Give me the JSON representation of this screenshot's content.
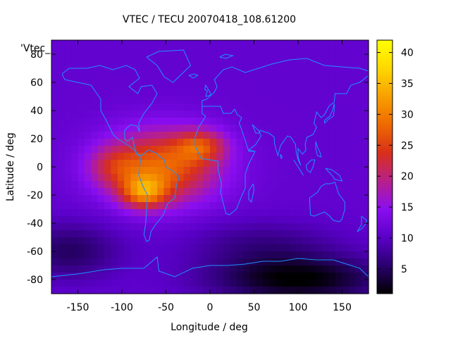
{
  "chart_data": {
    "type": "heatmap",
    "title": "VTEC / TECU 20070418_108.61200",
    "xlabel": "Longitude / deg",
    "ylabel": "Latitude / deg",
    "key_label": "'Vtec_",
    "xlim": [
      -180,
      180
    ],
    "ylim": [
      -90,
      90
    ],
    "xticks": [
      -150,
      -100,
      -50,
      0,
      50,
      100,
      150
    ],
    "yticks": [
      -80,
      -60,
      -40,
      -20,
      0,
      20,
      40,
      60,
      80
    ],
    "colorbar": {
      "range": [
        1,
        42
      ],
      "ticks": [
        5,
        10,
        15,
        20,
        25,
        30,
        35,
        40
      ],
      "palette": [
        "#000000",
        "#2a006e",
        "#5a00c8",
        "#8a0ef0",
        "#b8208a",
        "#d8301a",
        "#ee6a00",
        "#f8a000",
        "#ffd800",
        "#ffff00"
      ]
    },
    "field": {
      "background": 11,
      "features": [
        {
          "name": "equatorial-anomaly-main",
          "lon": -55,
          "lat": 0,
          "sigma_lon": 45,
          "sigma_lat": 18,
          "amplitude": 17
        },
        {
          "name": "crest-south",
          "lon": -75,
          "lat": -18,
          "sigma_lon": 18,
          "sigma_lat": 8,
          "amplitude": 14
        },
        {
          "name": "crest-north",
          "lon": -10,
          "lat": 15,
          "sigma_lon": 20,
          "sigma_lat": 8,
          "amplitude": 10
        },
        {
          "name": "crest-west",
          "lon": -110,
          "lat": 0,
          "sigma_lon": 20,
          "sigma_lat": 10,
          "amplitude": 6
        },
        {
          "name": "polar-south-low",
          "lon": 100,
          "lat": -80,
          "sigma_lon": 70,
          "sigma_lat": 12,
          "amplitude": -10
        },
        {
          "name": "south-pacific-low",
          "lon": -160,
          "lat": -60,
          "sigma_lon": 40,
          "sigma_lat": 14,
          "amplitude": -6
        },
        {
          "name": "southern-indian-low",
          "lon": 60,
          "lat": -55,
          "sigma_lon": 60,
          "sigma_lat": 12,
          "amplitude": -4
        }
      ]
    },
    "coastlines": [
      {
        "name": "north-america",
        "points": [
          [
            -168,
            66
          ],
          [
            -160,
            70
          ],
          [
            -140,
            70
          ],
          [
            -125,
            72
          ],
          [
            -110,
            69
          ],
          [
            -95,
            72
          ],
          [
            -85,
            69
          ],
          [
            -80,
            63
          ],
          [
            -92,
            57
          ],
          [
            -82,
            52
          ],
          [
            -78,
            57
          ],
          [
            -66,
            58
          ],
          [
            -60,
            52
          ],
          [
            -66,
            45
          ],
          [
            -70,
            42
          ],
          [
            -75,
            38
          ],
          [
            -81,
            31
          ],
          [
            -80,
            25
          ],
          [
            -83,
            29
          ],
          [
            -90,
            30
          ],
          [
            -97,
            26
          ],
          [
            -97,
            20
          ],
          [
            -94,
            18
          ],
          [
            -88,
            21
          ],
          [
            -86,
            15
          ],
          [
            -83,
            9
          ],
          [
            -78,
            8
          ],
          [
            -82,
            8
          ],
          [
            -86,
            12
          ],
          [
            -92,
            15
          ],
          [
            -105,
            20
          ],
          [
            -110,
            23
          ],
          [
            -117,
            32
          ],
          [
            -124,
            40
          ],
          [
            -124,
            48
          ],
          [
            -135,
            58
          ],
          [
            -150,
            60
          ],
          [
            -165,
            62
          ],
          [
            -168,
            66
          ]
        ]
      },
      {
        "name": "south-america",
        "points": [
          [
            -78,
            8
          ],
          [
            -70,
            12
          ],
          [
            -62,
            10
          ],
          [
            -52,
            5
          ],
          [
            -50,
            0
          ],
          [
            -42,
            -3
          ],
          [
            -35,
            -7
          ],
          [
            -38,
            -13
          ],
          [
            -40,
            -22
          ],
          [
            -48,
            -26
          ],
          [
            -53,
            -34
          ],
          [
            -58,
            -38
          ],
          [
            -63,
            -42
          ],
          [
            -67,
            -46
          ],
          [
            -69,
            -52
          ],
          [
            -72,
            -53
          ],
          [
            -75,
            -48
          ],
          [
            -73,
            -40
          ],
          [
            -72,
            -30
          ],
          [
            -71,
            -20
          ],
          [
            -76,
            -14
          ],
          [
            -81,
            -6
          ],
          [
            -80,
            0
          ],
          [
            -78,
            8
          ]
        ]
      },
      {
        "name": "greenland",
        "points": [
          [
            -72,
            78
          ],
          [
            -58,
            82
          ],
          [
            -30,
            83
          ],
          [
            -22,
            72
          ],
          [
            -42,
            60
          ],
          [
            -52,
            64
          ],
          [
            -60,
            72
          ],
          [
            -72,
            78
          ]
        ]
      },
      {
        "name": "eurasia-africa",
        "points": [
          [
            -9,
            43
          ],
          [
            -9,
            38
          ],
          [
            -5,
            36
          ],
          [
            -13,
            28
          ],
          [
            -17,
            21
          ],
          [
            -17,
            15
          ],
          [
            -10,
            6
          ],
          [
            0,
            5
          ],
          [
            9,
            4
          ],
          [
            9,
            -2
          ],
          [
            13,
            -12
          ],
          [
            12,
            -18
          ],
          [
            18,
            -33
          ],
          [
            22,
            -34
          ],
          [
            30,
            -30
          ],
          [
            35,
            -22
          ],
          [
            40,
            -15
          ],
          [
            40,
            -5
          ],
          [
            44,
            2
          ],
          [
            51,
            11
          ],
          [
            44,
            11
          ],
          [
            42,
            15
          ],
          [
            35,
            28
          ],
          [
            33,
            31
          ],
          [
            36,
            35
          ],
          [
            31,
            37
          ],
          [
            28,
            41
          ],
          [
            24,
            38
          ],
          [
            15,
            38
          ],
          [
            12,
            43
          ],
          [
            3,
            43
          ],
          [
            -9,
            43
          ],
          [
            -9,
            47
          ],
          [
            -4,
            48
          ],
          [
            5,
            53
          ],
          [
            8,
            57
          ],
          [
            5,
            62
          ],
          [
            15,
            69
          ],
          [
            25,
            71
          ],
          [
            40,
            67
          ],
          [
            55,
            70
          ],
          [
            70,
            73
          ],
          [
            90,
            76
          ],
          [
            110,
            77
          ],
          [
            130,
            72
          ],
          [
            150,
            71
          ],
          [
            170,
            70
          ],
          [
            180,
            68
          ]
        ]
      },
      {
        "name": "asia-east",
        "points": [
          [
            180,
            65
          ],
          [
            170,
            60
          ],
          [
            160,
            58
          ],
          [
            155,
            52
          ],
          [
            142,
            52
          ],
          [
            141,
            46
          ],
          [
            135,
            43
          ],
          [
            130,
            37
          ],
          [
            126,
            35
          ],
          [
            121,
            39
          ],
          [
            118,
            31
          ],
          [
            121,
            28
          ],
          [
            117,
            23
          ],
          [
            110,
            21
          ],
          [
            108,
            16
          ],
          [
            109,
            12
          ],
          [
            105,
            9
          ],
          [
            100,
            13
          ],
          [
            100,
            7
          ],
          [
            103,
            1
          ],
          [
            100,
            5
          ],
          [
            98,
            10
          ],
          [
            97,
            16
          ],
          [
            92,
            21
          ],
          [
            88,
            22
          ],
          [
            80,
            15
          ],
          [
            77,
            8
          ],
          [
            73,
            17
          ],
          [
            73,
            21
          ],
          [
            67,
            24
          ],
          [
            61,
            25
          ],
          [
            57,
            26
          ],
          [
            56,
            24
          ],
          [
            52,
            24
          ],
          [
            48,
            30
          ],
          [
            55,
            26
          ],
          [
            58,
            22
          ],
          [
            52,
            16
          ],
          [
            44,
            12
          ],
          [
            51,
            11
          ]
        ]
      },
      {
        "name": "australia",
        "points": [
          [
            113,
            -22
          ],
          [
            114,
            -34
          ],
          [
            118,
            -35
          ],
          [
            130,
            -32
          ],
          [
            136,
            -35
          ],
          [
            140,
            -38
          ],
          [
            147,
            -39
          ],
          [
            150,
            -37
          ],
          [
            153,
            -30
          ],
          [
            153,
            -25
          ],
          [
            146,
            -19
          ],
          [
            142,
            -11
          ],
          [
            136,
            -12
          ],
          [
            131,
            -12
          ],
          [
            126,
            -14
          ],
          [
            122,
            -18
          ],
          [
            113,
            -22
          ]
        ]
      },
      {
        "name": "antarctica",
        "points": [
          [
            -180,
            -78
          ],
          [
            -150,
            -76
          ],
          [
            -120,
            -73
          ],
          [
            -100,
            -72
          ],
          [
            -75,
            -72
          ],
          [
            -60,
            -64
          ],
          [
            -58,
            -74
          ],
          [
            -40,
            -78
          ],
          [
            -20,
            -72
          ],
          [
            0,
            -70
          ],
          [
            20,
            -70
          ],
          [
            40,
            -69
          ],
          [
            60,
            -67
          ],
          [
            80,
            -67
          ],
          [
            100,
            -65
          ],
          [
            120,
            -66
          ],
          [
            140,
            -66
          ],
          [
            160,
            -70
          ],
          [
            170,
            -72
          ],
          [
            180,
            -78
          ]
        ]
      },
      {
        "name": "new-zealand",
        "points": [
          [
            172,
            -35
          ],
          [
            178,
            -38
          ],
          [
            176,
            -41
          ],
          [
            172,
            -44
          ],
          [
            167,
            -46
          ],
          [
            172,
            -41
          ],
          [
            172,
            -35
          ]
        ]
      },
      {
        "name": "madagascar",
        "points": [
          [
            49,
            -12
          ],
          [
            50,
            -16
          ],
          [
            47,
            -25
          ],
          [
            44,
            -23
          ],
          [
            44,
            -17
          ],
          [
            49,
            -12
          ]
        ]
      },
      {
        "name": "japan",
        "points": [
          [
            130,
            31
          ],
          [
            135,
            34
          ],
          [
            140,
            36
          ],
          [
            141,
            40
          ],
          [
            141,
            45
          ],
          [
            139,
            40
          ],
          [
            136,
            36
          ],
          [
            130,
            33
          ],
          [
            130,
            31
          ]
        ]
      },
      {
        "name": "britain",
        "points": [
          [
            -5,
            50
          ],
          [
            1,
            51
          ],
          [
            0,
            53
          ],
          [
            -3,
            56
          ],
          [
            -5,
            58
          ],
          [
            -6,
            55
          ],
          [
            -3,
            54
          ],
          [
            -5,
            50
          ]
        ]
      },
      {
        "name": "borneo-sumatra",
        "points": [
          [
            95,
            5
          ],
          [
            100,
            0
          ],
          [
            106,
            -6
          ],
          [
            104,
            -4
          ],
          [
            98,
            2
          ],
          [
            95,
            5
          ]
        ]
      },
      {
        "name": "borneo",
        "points": [
          [
            109,
            1
          ],
          [
            115,
            5
          ],
          [
            119,
            5
          ],
          [
            117,
            0
          ],
          [
            114,
            -4
          ],
          [
            110,
            -2
          ],
          [
            109,
            1
          ]
        ]
      },
      {
        "name": "new-guinea",
        "points": [
          [
            131,
            -1
          ],
          [
            138,
            -2
          ],
          [
            147,
            -6
          ],
          [
            150,
            -10
          ],
          [
            142,
            -9
          ],
          [
            137,
            -5
          ],
          [
            131,
            -1
          ]
        ]
      },
      {
        "name": "philippines",
        "points": [
          [
            120,
            18
          ],
          [
            122,
            14
          ],
          [
            125,
            10
          ],
          [
            126,
            7
          ],
          [
            122,
            8
          ],
          [
            120,
            13
          ],
          [
            120,
            18
          ]
        ]
      },
      {
        "name": "iceland",
        "points": [
          [
            -24,
            65
          ],
          [
            -18,
            66
          ],
          [
            -14,
            65
          ],
          [
            -19,
            63
          ],
          [
            -24,
            65
          ]
        ]
      },
      {
        "name": "svalbard",
        "points": [
          [
            11,
            78
          ],
          [
            17,
            80
          ],
          [
            26,
            79
          ],
          [
            18,
            77
          ],
          [
            11,
            78
          ]
        ]
      },
      {
        "name": "sri-lanka",
        "points": [
          [
            80,
            9
          ],
          [
            82,
            7
          ],
          [
            81,
            6
          ],
          [
            80,
            7
          ],
          [
            80,
            9
          ]
        ]
      }
    ]
  }
}
